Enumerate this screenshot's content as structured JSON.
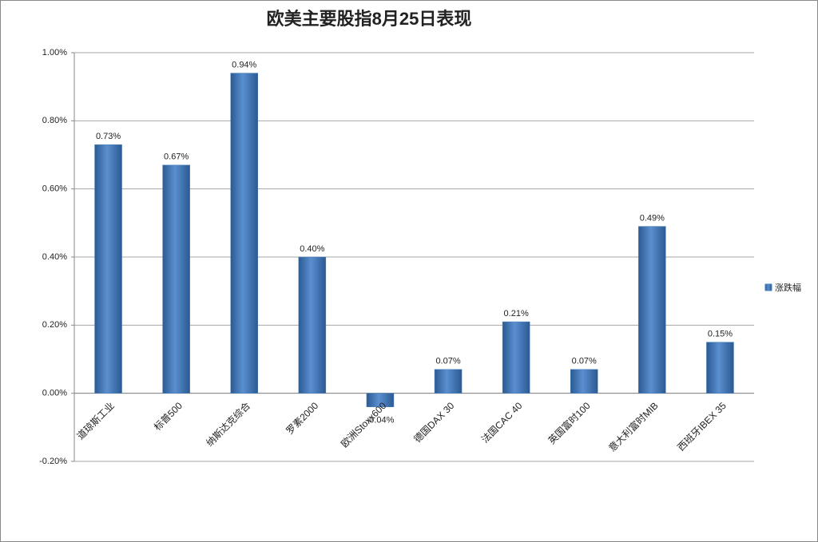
{
  "chart_data": {
    "type": "bar",
    "title": "欧美主要股指8月25日表现",
    "categories": [
      "道琼斯工业",
      "标普500",
      "纳斯达克综合",
      "罗素2000",
      "欧洲Stoxx600",
      "德国DAX 30",
      "法国CAC 40",
      "英国富时100",
      "意大利富时MIB",
      "西班牙IBEX 35"
    ],
    "series": [
      {
        "name": "涨跌幅",
        "color": "#4a7ebb",
        "values": [
          0.73,
          0.67,
          0.94,
          0.4,
          -0.04,
          0.07,
          0.21,
          0.07,
          0.49,
          0.15
        ],
        "value_labels": [
          "0.73%",
          "0.67%",
          "0.94%",
          "0.40%",
          "-0.04%",
          "0.07%",
          "0.21%",
          "0.07%",
          "0.49%",
          "0.15%"
        ]
      }
    ],
    "ylim": [
      -0.2,
      1.0
    ],
    "yticks": [
      {
        "value": -0.2,
        "label": "-0.20%"
      },
      {
        "value": 0,
        "label": "0.00%"
      },
      {
        "value": 0.2,
        "label": "0.20%"
      },
      {
        "value": 0.4,
        "label": "0.40%"
      },
      {
        "value": 0.6,
        "label": "0.60%"
      },
      {
        "value": 0.8,
        "label": "0.80%"
      },
      {
        "value": 1.0,
        "label": "1.00%"
      }
    ],
    "grid": true,
    "legend": "right"
  }
}
